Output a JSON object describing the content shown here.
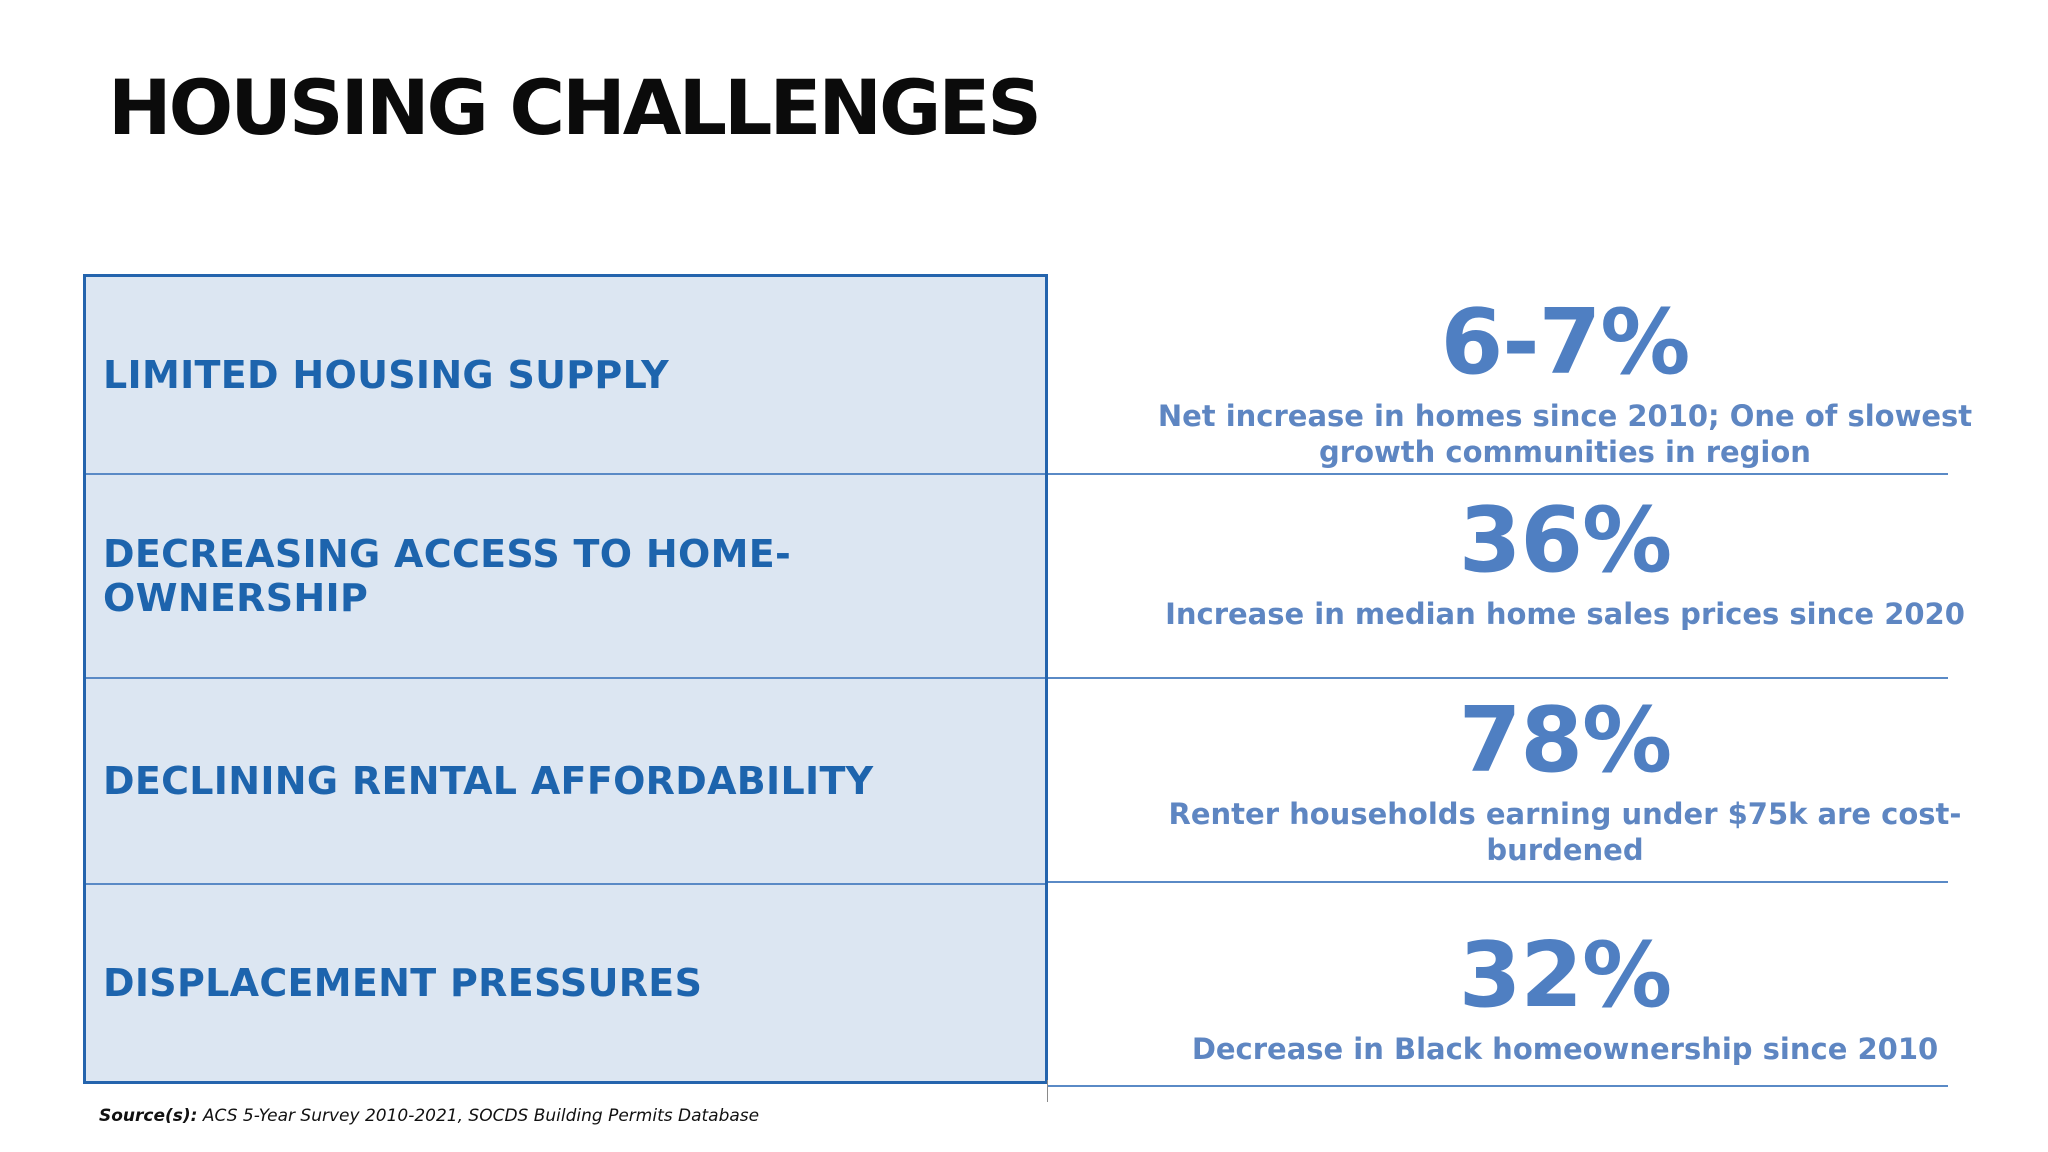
{
  "title": "HOUSING CHALLENGES",
  "challenges": [
    {
      "label": "LIMITED HOUSING SUPPLY",
      "stat": "6-7%",
      "description": "Net increase in homes since 2010; One of slowest growth communities in region"
    },
    {
      "label": "DECREASING ACCESS TO HOME-OWNERSHIP",
      "stat": "36%",
      "description": "Increase in median home sales prices since 2020"
    },
    {
      "label": "DECLINING RENTAL AFFORDABILITY",
      "stat": "78%",
      "description": "Renter households earning under $75k are cost-burdened"
    },
    {
      "label": "DISPLACEMENT PRESSURES",
      "stat": "32%",
      "description": "Decrease in Black homeownership since 2010"
    }
  ],
  "source": {
    "label": "Source(s):",
    "text": "ACS 5-Year Survey 2010-2021, SOCDS Building Permits Database"
  },
  "colors": {
    "title": "#0b0b0b",
    "panel_background": "#dce6f2",
    "panel_border": "#2464ad",
    "label_text": "#1d64ad",
    "stat_value": "#4f7fc2",
    "stat_description": "#5e86c2",
    "divider": "#5a8ac6"
  }
}
